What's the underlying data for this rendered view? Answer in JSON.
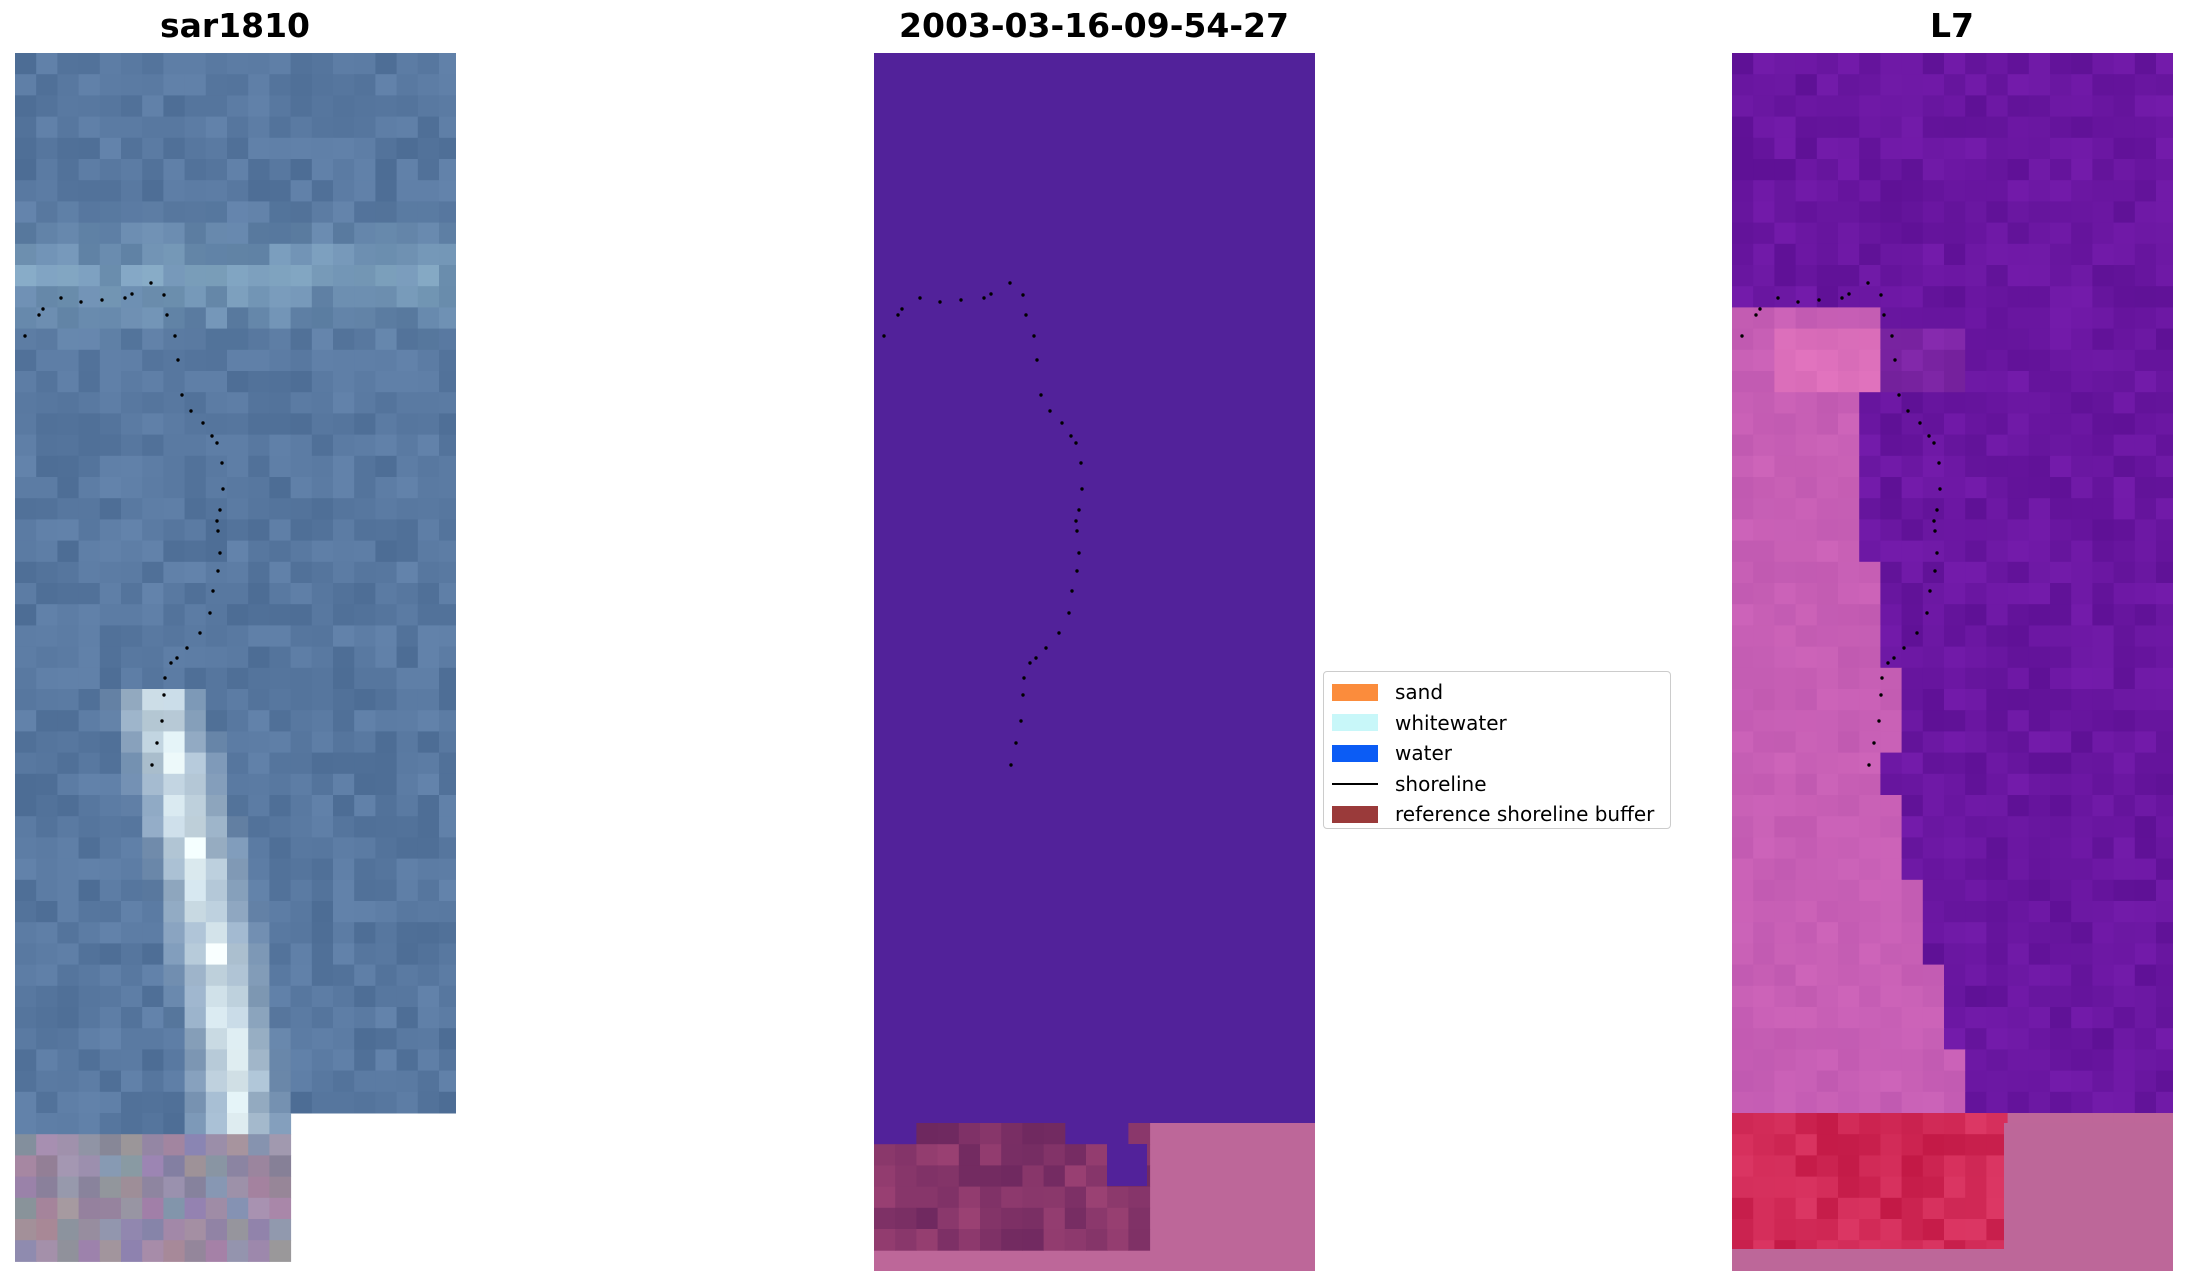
{
  "panels": {
    "left": {
      "title": "sar1810"
    },
    "middle": {
      "title": "2003-03-16-09-54-27"
    },
    "right": {
      "title": "L7"
    }
  },
  "legend": {
    "items": [
      {
        "label": "sand",
        "color": "#fb8c3c",
        "type": "patch"
      },
      {
        "label": "whitewater",
        "color": "#c8f7f9",
        "type": "patch"
      },
      {
        "label": "water",
        "color": "#0b5cf5",
        "type": "patch"
      },
      {
        "label": "shoreline",
        "color": "#000000",
        "type": "line"
      },
      {
        "label": "reference shoreline buffer",
        "color": "#9a3a3a",
        "type": "patch"
      }
    ]
  },
  "colors": {
    "classified_water": "#52229a",
    "buffer_overlay": "#bd6799",
    "rgb_base": "#5a7fa6",
    "false_color_base": "#6b1aa0"
  }
}
